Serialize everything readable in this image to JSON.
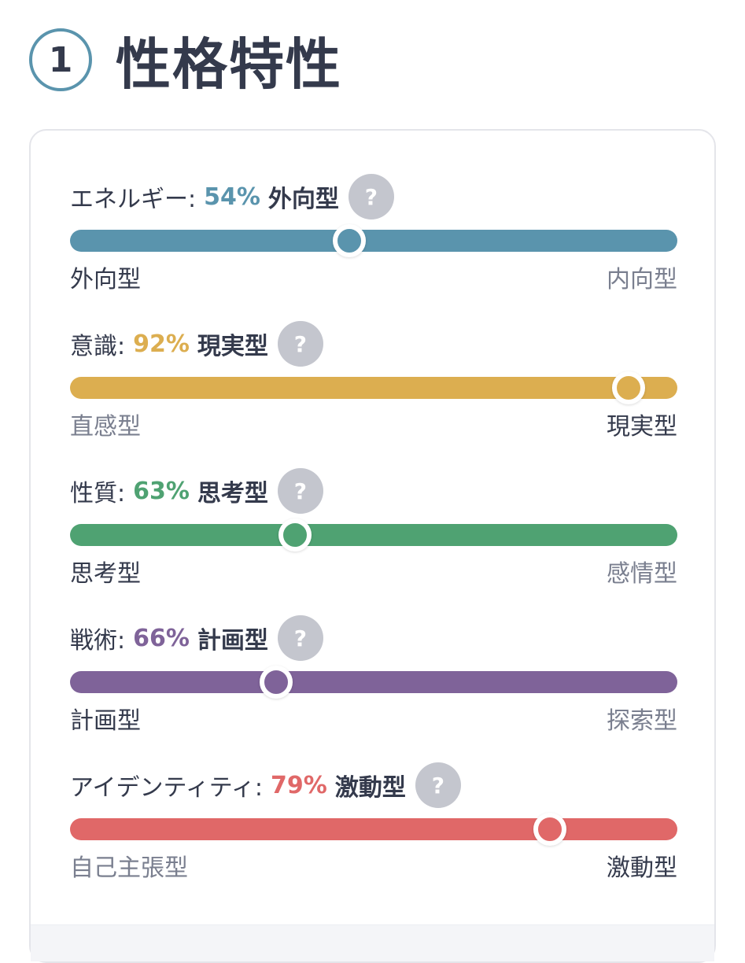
{
  "header": {
    "number": "1",
    "title": "性格特性"
  },
  "traits": [
    {
      "label": "エネルギー:",
      "percent": "54%",
      "value": 54,
      "type": "外向型",
      "help": "?",
      "left": "外向型",
      "right": "内向型",
      "active": "left",
      "color": "#5a94ad"
    },
    {
      "label": "意識:",
      "percent": "92%",
      "value": 92,
      "type": "現実型",
      "help": "?",
      "left": "直感型",
      "right": "現実型",
      "active": "right",
      "color": "#dcae50"
    },
    {
      "label": "性質:",
      "percent": "63%",
      "value": 63,
      "type": "思考型",
      "help": "?",
      "left": "思考型",
      "right": "感情型",
      "active": "left",
      "color": "#4fa272"
    },
    {
      "label": "戦術:",
      "percent": "66%",
      "value": 66,
      "type": "計画型",
      "help": "?",
      "left": "計画型",
      "right": "探索型",
      "active": "left",
      "color": "#7f6399"
    },
    {
      "label": "アイデンティティ:",
      "percent": "79%",
      "value": 79,
      "type": "激動型",
      "help": "?",
      "left": "自己主張型",
      "right": "激動型",
      "active": "right",
      "color": "#e06868"
    }
  ]
}
